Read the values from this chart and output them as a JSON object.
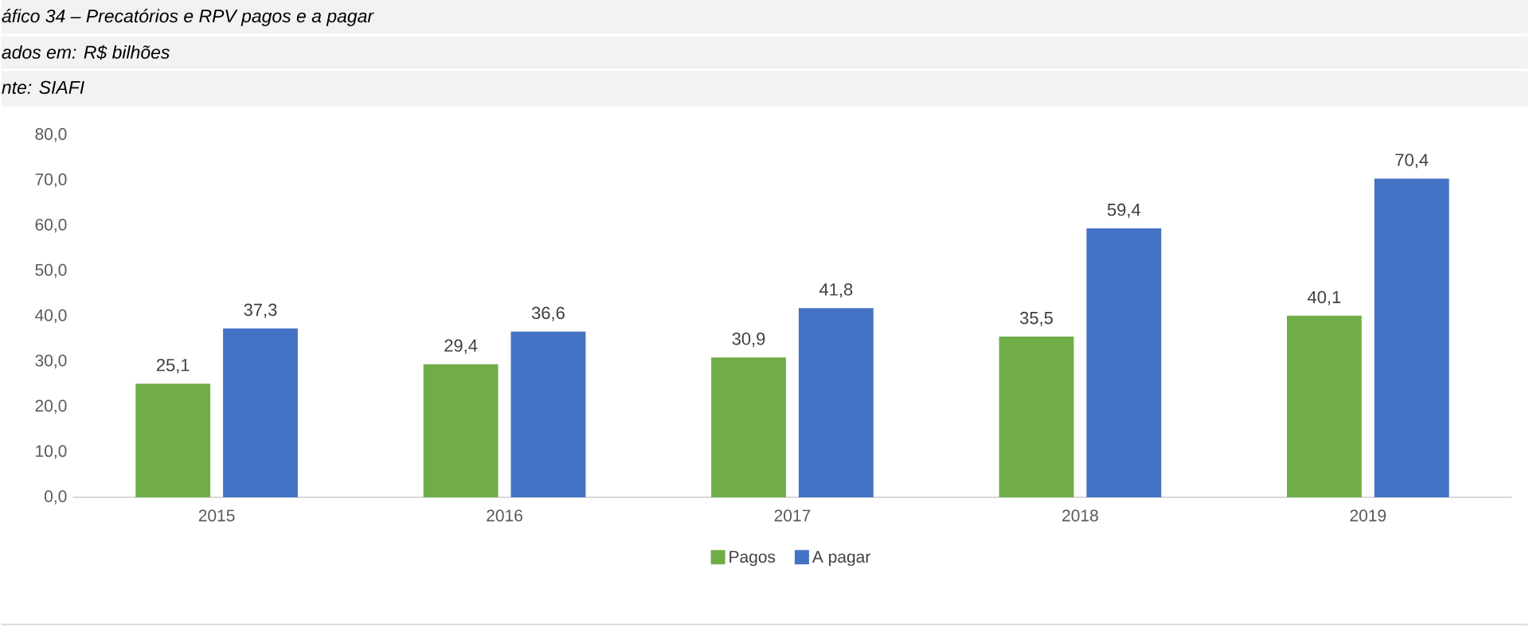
{
  "chart_data": {
    "type": "bar",
    "title": "áfico 34 – Precatórios e RPV pagos e a pagar",
    "subtitle": "ados em: R$ bilhões",
    "annotations": [
      "nte: SIAFI"
    ],
    "categories": [
      "2015",
      "2016",
      "2017",
      "2018",
      "2019"
    ],
    "series": [
      {
        "name": "Pagos",
        "color": "#70ad47",
        "values": [
          25.1,
          29.4,
          30.9,
          35.5,
          40.1
        ],
        "value_labels": [
          "25,1",
          "29,4",
          "30,9",
          "35,5",
          "40,1"
        ]
      },
      {
        "name": "A pagar",
        "color": "#4472c4",
        "values": [
          37.3,
          36.6,
          41.8,
          59.4,
          70.4
        ],
        "value_labels": [
          "37,3",
          "36,6",
          "41,8",
          "59,4",
          "70,4"
        ]
      }
    ],
    "ylim": [
      0,
      80
    ],
    "yticks": [
      {
        "value": 0,
        "label": "0,0"
      },
      {
        "value": 10,
        "label": "10,0"
      },
      {
        "value": 20,
        "label": "20,0"
      },
      {
        "value": 30,
        "label": "30,0"
      },
      {
        "value": 40,
        "label": "40,0"
      },
      {
        "value": 50,
        "label": "50,0"
      },
      {
        "value": 60,
        "label": "60,0"
      },
      {
        "value": 70,
        "label": "70,0"
      },
      {
        "value": 80,
        "label": "80,0"
      }
    ],
    "legend": "bottom"
  }
}
